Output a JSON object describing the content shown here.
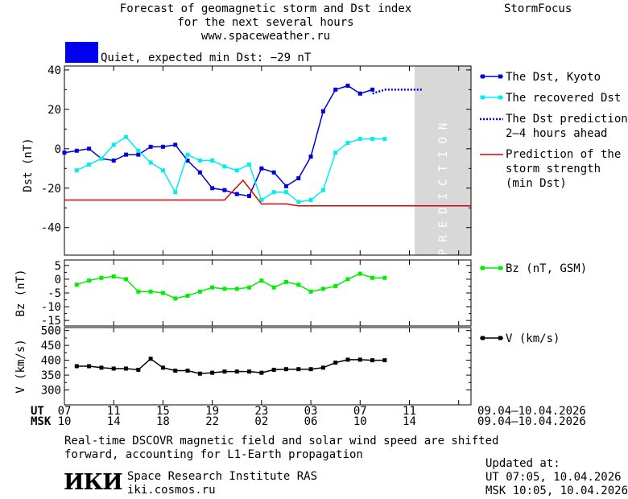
{
  "header": {
    "title_line1": "Forecast of geomagnetic storm and Dst index",
    "title_line2": "for the next several hours",
    "url": "www.spaceweather.ru",
    "brand": "StormFocus",
    "status_text": "Quiet, expected min Dst: −29 nT",
    "status_color": "#0000ee"
  },
  "footer": {
    "note_line1": "Real-time DSCOVR magnetic field and solar wind speed are shifted",
    "note_line2": "forward, accounting for L1-Earth propagation",
    "logo_text": "ИКИ",
    "institute": "Space Research Institute RAS",
    "website": "iki.cosmos.ru",
    "updated_label": "Updated at:",
    "updated_ut": "UT   07:05, 10.04.2026",
    "updated_msk": "MSK 10:05, 10.04.2026"
  },
  "chart_data": [
    {
      "type": "line",
      "ylabel": "Dst (nT)",
      "ylim": [
        -54,
        42
      ],
      "yticks": [
        40,
        20,
        0,
        -20,
        -40
      ],
      "prediction_label": "PREDICTION",
      "x_hours": [
        0,
        1,
        2,
        3,
        4,
        5,
        6,
        7,
        8,
        9,
        10,
        11,
        12,
        13,
        14,
        15,
        16,
        17,
        18,
        19,
        20,
        21,
        22,
        23,
        24,
        25,
        26,
        27,
        28,
        29,
        30,
        31,
        32,
        33
      ],
      "series": [
        {
          "name": "The Dst, Kyoto",
          "color": "#0000dd",
          "marker": "square",
          "x": [
            0,
            1,
            2,
            3,
            4,
            5,
            6,
            7,
            8,
            9,
            10,
            11,
            12,
            13,
            14,
            15,
            16,
            17,
            18,
            19,
            20,
            21,
            22,
            23,
            24,
            25
          ],
          "y": [
            -2,
            -1,
            0,
            -5,
            -6,
            -3,
            -3,
            1,
            1,
            2,
            -6,
            -12,
            -20,
            -21,
            -23,
            -24,
            -10,
            -12,
            -19,
            -15,
            -4,
            19,
            30,
            32,
            28,
            30
          ]
        },
        {
          "name": "The recovered Dst",
          "color": "#00eeee",
          "marker": "square",
          "x": [
            1,
            2,
            3,
            4,
            5,
            6,
            7,
            8,
            9,
            10,
            11,
            12,
            13,
            14,
            15,
            16,
            17,
            18,
            19,
            20,
            21,
            22,
            23,
            24,
            25,
            26
          ],
          "y": [
            -11,
            -8,
            -5,
            2,
            6,
            -1,
            -7,
            -11,
            -22,
            -3,
            -6,
            -6,
            -9,
            -11,
            -8,
            -26,
            -22,
            -22,
            -27,
            -26,
            -21,
            -2,
            3,
            5,
            5,
            5
          ]
        },
        {
          "name": "The Dst prediction 2–4 hours ahead",
          "color": "#0000dd",
          "style": "dotted",
          "x": [
            25,
            26,
            27,
            28,
            29
          ],
          "y": [
            28,
            30,
            30,
            30,
            30
          ]
        },
        {
          "name": "Prediction of the storm strength (min Dst)",
          "color": "#dd0000",
          "x": [
            0,
            13,
            14.5,
            16,
            18,
            19,
            20,
            33
          ],
          "y": [
            -26,
            -26,
            -16,
            -28,
            -28,
            -29,
            -29,
            -29
          ]
        }
      ],
      "legend": [
        "The Dst, Kyoto",
        "The recovered Dst",
        "The Dst prediction",
        "2–4 hours ahead",
        "Prediction of the",
        "storm strength",
        "(min Dst)"
      ]
    },
    {
      "type": "line",
      "ylabel": "Bz (nT)",
      "ylim": [
        -17,
        7
      ],
      "yticks": [
        5,
        0,
        -5,
        -10,
        -15
      ],
      "series": [
        {
          "name": "Bz (nT, GSM)",
          "color": "#00ee00",
          "marker": "square",
          "x": [
            1,
            2,
            3,
            4,
            5,
            6,
            7,
            8,
            9,
            10,
            11,
            12,
            13,
            14,
            15,
            16,
            17,
            18,
            19,
            20,
            21,
            22,
            23,
            24,
            25,
            26
          ],
          "y": [
            -2,
            -0.5,
            0.5,
            1,
            0,
            -4.5,
            -4.5,
            -5,
            -7,
            -6,
            -4.5,
            -3,
            -3.5,
            -3.5,
            -3,
            -0.5,
            -3,
            -1,
            -2,
            -4.5,
            -3.5,
            -2.5,
            0,
            2,
            0.5,
            0.5
          ]
        }
      ],
      "legend": [
        "Bz (nT, GSM)"
      ]
    },
    {
      "type": "line",
      "ylabel": "V (km/s)",
      "ylim": [
        250,
        510
      ],
      "yticks": [
        500,
        450,
        400,
        350,
        300
      ],
      "series": [
        {
          "name": "V (km/s)",
          "color": "#000000",
          "marker": "square",
          "x": [
            1,
            2,
            3,
            4,
            5,
            6,
            7,
            8,
            9,
            10,
            11,
            12,
            13,
            14,
            15,
            16,
            17,
            18,
            19,
            20,
            21,
            22,
            23,
            24,
            25,
            26
          ],
          "y": [
            380,
            380,
            375,
            372,
            372,
            368,
            405,
            375,
            365,
            365,
            355,
            358,
            362,
            362,
            362,
            358,
            368,
            370,
            370,
            370,
            375,
            392,
            402,
            402,
            400,
            400
          ]
        }
      ],
      "legend": [
        "V (km/s)"
      ]
    }
  ],
  "x_axis": {
    "ut_label": "UT",
    "msk_label": "MSK",
    "ut_ticks": [
      "07",
      "11",
      "15",
      "19",
      "23",
      "03",
      "07",
      "11"
    ],
    "msk_ticks": [
      "10",
      "14",
      "18",
      "22",
      "02",
      "06",
      "10",
      "14"
    ],
    "ut_date_range": "09.04–10.04.2026",
    "msk_date_range": "09.04–10.04.2026"
  }
}
